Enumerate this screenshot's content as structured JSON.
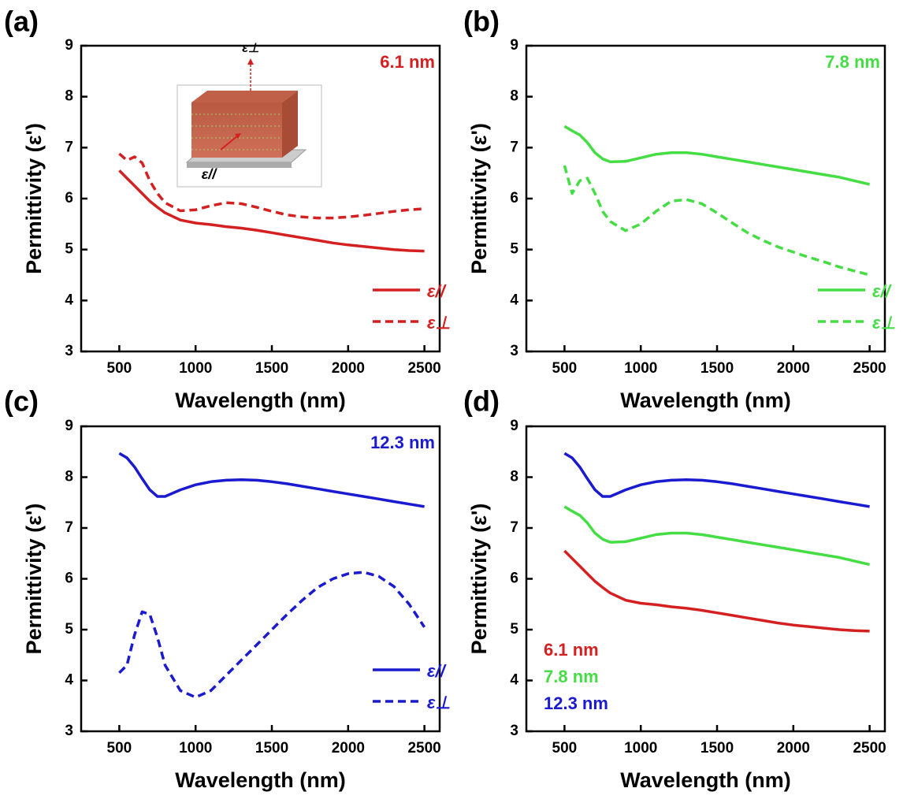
{
  "chart_data": [
    {
      "type": "line",
      "panel_label": "(a)",
      "annotation": "6.1 nm",
      "annotation_color": "#d42020",
      "xlabel": "Wavelength (nm)",
      "ylabel": "Permittivity (ε')",
      "inset_labels": [
        "ε⊥",
        "ε//"
      ],
      "xlim": [
        250,
        2600
      ],
      "ylim": [
        3,
        9
      ],
      "xticks": [
        500,
        1000,
        1500,
        2000,
        2500
      ],
      "yticks": [
        3,
        4,
        5,
        6,
        7,
        8,
        9
      ],
      "legend": "bottom-right",
      "x": [
        500,
        550,
        600,
        650,
        700,
        750,
        800,
        900,
        1000,
        1100,
        1200,
        1300,
        1400,
        1500,
        1600,
        1700,
        1800,
        1900,
        2000,
        2100,
        2200,
        2300,
        2400,
        2500
      ],
      "series": [
        {
          "name": "ε//",
          "color": "#d42020",
          "dashed": false,
          "values": [
            6.55,
            6.4,
            6.25,
            6.1,
            5.95,
            5.83,
            5.72,
            5.58,
            5.52,
            5.49,
            5.45,
            5.42,
            5.38,
            5.33,
            5.28,
            5.23,
            5.18,
            5.13,
            5.09,
            5.06,
            5.03,
            5.0,
            4.98,
            4.97
          ]
        },
        {
          "name": "ε⊥",
          "color": "#d42020",
          "dashed": true,
          "values": [
            6.88,
            6.75,
            6.82,
            6.7,
            6.35,
            6.1,
            5.92,
            5.76,
            5.78,
            5.86,
            5.92,
            5.9,
            5.83,
            5.75,
            5.68,
            5.64,
            5.62,
            5.62,
            5.64,
            5.67,
            5.71,
            5.75,
            5.78,
            5.8
          ]
        }
      ]
    },
    {
      "type": "line",
      "panel_label": "(b)",
      "annotation": "7.8 nm",
      "annotation_color": "#44dd44",
      "xlabel": "Wavelength (nm)",
      "ylabel": "Permittivity (ε')",
      "xlim": [
        250,
        2600
      ],
      "ylim": [
        3,
        9
      ],
      "xticks": [
        500,
        1000,
        1500,
        2000,
        2500
      ],
      "yticks": [
        3,
        4,
        5,
        6,
        7,
        8,
        9
      ],
      "legend": "bottom-right",
      "x": [
        500,
        550,
        600,
        650,
        700,
        750,
        800,
        900,
        1000,
        1100,
        1200,
        1300,
        1400,
        1500,
        1600,
        1700,
        1800,
        1900,
        2000,
        2100,
        2200,
        2300,
        2400,
        2500
      ],
      "series": [
        {
          "name": "ε//",
          "color": "#44dd44",
          "dashed": false,
          "values": [
            7.42,
            7.33,
            7.25,
            7.1,
            6.9,
            6.78,
            6.72,
            6.73,
            6.8,
            6.87,
            6.9,
            6.9,
            6.87,
            6.82,
            6.77,
            6.72,
            6.67,
            6.62,
            6.57,
            6.52,
            6.47,
            6.42,
            6.35,
            6.28
          ]
        },
        {
          "name": "ε⊥",
          "color": "#44dd44",
          "dashed": true,
          "values": [
            6.65,
            6.1,
            6.35,
            6.4,
            6.1,
            5.75,
            5.55,
            5.37,
            5.5,
            5.75,
            5.95,
            5.98,
            5.9,
            5.72,
            5.52,
            5.33,
            5.18,
            5.05,
            4.95,
            4.85,
            4.76,
            4.66,
            4.58,
            4.5
          ]
        }
      ]
    },
    {
      "type": "line",
      "panel_label": "(c)",
      "annotation": "12.3 nm",
      "annotation_color": "#1a1ad0",
      "xlabel": "Wavelength (nm)",
      "ylabel": "Permittivity (ε')",
      "xlim": [
        250,
        2600
      ],
      "ylim": [
        3,
        9
      ],
      "xticks": [
        500,
        1000,
        1500,
        2000,
        2500
      ],
      "yticks": [
        3,
        4,
        5,
        6,
        7,
        8,
        9
      ],
      "legend": "bottom-right",
      "x": [
        500,
        550,
        600,
        650,
        700,
        750,
        800,
        900,
        1000,
        1100,
        1200,
        1300,
        1400,
        1500,
        1600,
        1700,
        1800,
        1900,
        2000,
        2100,
        2200,
        2300,
        2400,
        2500
      ],
      "series": [
        {
          "name": "ε//",
          "color": "#1a1ad0",
          "dashed": false,
          "values": [
            8.47,
            8.38,
            8.2,
            7.97,
            7.75,
            7.62,
            7.62,
            7.75,
            7.85,
            7.91,
            7.94,
            7.95,
            7.94,
            7.91,
            7.87,
            7.82,
            7.77,
            7.72,
            7.67,
            7.62,
            7.57,
            7.52,
            7.47,
            7.42
          ]
        },
        {
          "name": "ε⊥",
          "color": "#1a1ad0",
          "dashed": true,
          "values": [
            4.15,
            4.3,
            4.9,
            5.35,
            5.3,
            4.85,
            4.3,
            3.8,
            3.67,
            3.8,
            4.1,
            4.4,
            4.7,
            5.0,
            5.3,
            5.58,
            5.83,
            6.0,
            6.1,
            6.13,
            6.05,
            5.85,
            5.5,
            5.05
          ]
        }
      ]
    },
    {
      "type": "line",
      "panel_label": "(d)",
      "xlabel": "Wavelength (nm)",
      "ylabel": "Permittivity (ε')",
      "xlim": [
        250,
        2600
      ],
      "ylim": [
        3,
        9
      ],
      "xticks": [
        500,
        1000,
        1500,
        2000,
        2500
      ],
      "yticks": [
        3,
        4,
        5,
        6,
        7,
        8,
        9
      ],
      "legend": "bottom-left",
      "x": [
        500,
        550,
        600,
        650,
        700,
        750,
        800,
        900,
        1000,
        1100,
        1200,
        1300,
        1400,
        1500,
        1600,
        1700,
        1800,
        1900,
        2000,
        2100,
        2200,
        2300,
        2400,
        2500
      ],
      "series": [
        {
          "name": "6.1 nm",
          "color": "#d42020",
          "dashed": false,
          "values": [
            6.55,
            6.4,
            6.25,
            6.1,
            5.95,
            5.83,
            5.72,
            5.58,
            5.52,
            5.49,
            5.45,
            5.42,
            5.38,
            5.33,
            5.28,
            5.23,
            5.18,
            5.13,
            5.09,
            5.06,
            5.03,
            5.0,
            4.98,
            4.97
          ]
        },
        {
          "name": "7.8 nm",
          "color": "#44dd44",
          "dashed": false,
          "values": [
            7.42,
            7.33,
            7.25,
            7.1,
            6.9,
            6.78,
            6.72,
            6.73,
            6.8,
            6.87,
            6.9,
            6.9,
            6.87,
            6.82,
            6.77,
            6.72,
            6.67,
            6.62,
            6.57,
            6.52,
            6.47,
            6.42,
            6.35,
            6.28
          ]
        },
        {
          "name": "12.3 nm",
          "color": "#1a1ad0",
          "dashed": false,
          "values": [
            8.47,
            8.38,
            8.2,
            7.97,
            7.75,
            7.62,
            7.62,
            7.75,
            7.85,
            7.91,
            7.94,
            7.95,
            7.94,
            7.91,
            7.87,
            7.82,
            7.77,
            7.72,
            7.67,
            7.62,
            7.57,
            7.52,
            7.47,
            7.42
          ]
        }
      ]
    }
  ]
}
